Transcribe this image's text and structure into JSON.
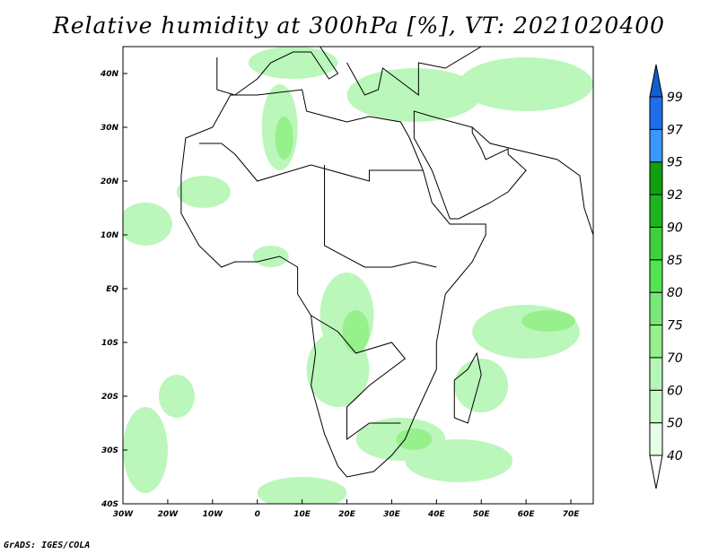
{
  "title": "Relative humidity at 300hPa [%], VT: 2021020400",
  "footer": "GrADS: IGES/COLA",
  "map": {
    "lon_range": [
      -30,
      75
    ],
    "lat_range": [
      -40,
      45
    ],
    "lon_ticks": [
      {
        "v": -30,
        "label": "30W"
      },
      {
        "v": -20,
        "label": "20W"
      },
      {
        "v": -10,
        "label": "10W"
      },
      {
        "v": 0,
        "label": "0"
      },
      {
        "v": 10,
        "label": "10E"
      },
      {
        "v": 20,
        "label": "20E"
      },
      {
        "v": 30,
        "label": "30E"
      },
      {
        "v": 40,
        "label": "40E"
      },
      {
        "v": 50,
        "label": "50E"
      },
      {
        "v": 60,
        "label": "60E"
      },
      {
        "v": 70,
        "label": "70E"
      }
    ],
    "lat_ticks": [
      {
        "v": -40,
        "label": "40S"
      },
      {
        "v": -30,
        "label": "30S"
      },
      {
        "v": -20,
        "label": "20S"
      },
      {
        "v": -10,
        "label": "10S"
      },
      {
        "v": 0,
        "label": "EQ"
      },
      {
        "v": 10,
        "label": "10N"
      },
      {
        "v": 20,
        "label": "20N"
      },
      {
        "v": 30,
        "label": "30N"
      },
      {
        "v": 40,
        "label": "40N"
      }
    ]
  },
  "colorbar": {
    "levels": [
      "40",
      "50",
      "60",
      "70",
      "75",
      "80",
      "85",
      "90",
      "92",
      "95",
      "97",
      "99"
    ],
    "colors": [
      "#e6ffe6",
      "#c8fac8",
      "#b4f6b4",
      "#96f08c",
      "#78e878",
      "#50e650",
      "#3cd23c",
      "#1eb41e",
      "#0fa00f",
      "#3c96ff",
      "#1e6eeb",
      "#1060d0"
    ],
    "under_color": "#ffffff",
    "over_color": "#1060d0"
  }
}
